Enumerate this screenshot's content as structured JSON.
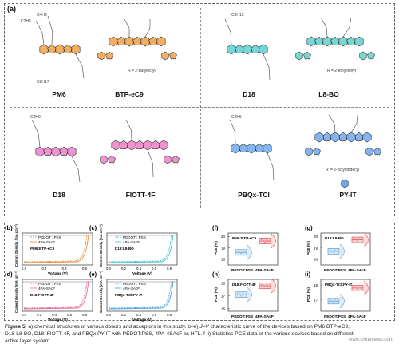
{
  "panel_a": {
    "label": "(a)",
    "molecules": [
      {
        "name": "PM6",
        "color": "#f0a048"
      },
      {
        "name": "BTP-eC9",
        "color": "#f0a048",
        "r_label": "R = 2-butyloctyl"
      },
      {
        "name": "D18",
        "color": "#5fd0d0"
      },
      {
        "name": "L8-BO",
        "color": "#5fd0d0",
        "r_label": "R = 2-ethylhexyl"
      },
      {
        "name": "D18",
        "color": "#ec7fc8"
      },
      {
        "name": "FIOTT-4F",
        "color": "#ec7fc8"
      },
      {
        "name": "PBQx-TCl",
        "color": "#6ea8ec"
      },
      {
        "name": "PY-IT",
        "color": "#6ea8ec",
        "r_label": "R' = 2-octyldodecyl"
      }
    ],
    "chain_labels": [
      "C4H9",
      "C2H5",
      "C8H17",
      "C6H13",
      "C4H9",
      "C2H5"
    ]
  },
  "jv_panels": [
    {
      "label": "(b)",
      "system": "PM6:BTP-eC9",
      "legend": [
        "PEDOT : PSS",
        "4PA-SAcF"
      ],
      "color": "#f08a3c",
      "ylabel": "Current Density (mA cm⁻²)",
      "xlabel": "Voltage (V)",
      "xticks": [
        "0.0",
        "0.2",
        "0.4",
        "0.6"
      ]
    },
    {
      "label": "(c)",
      "system": "D18:L8-BO",
      "legend": [
        "PEDOT : PSS",
        "4PA-SAcF"
      ],
      "color": "#3fc3d0",
      "ylabel": "Current Density (mA cm⁻²)",
      "xlabel": "Voltage (V)",
      "xticks": [
        "0.0",
        "0.2",
        "0.4",
        "0.6",
        "0.8"
      ]
    },
    {
      "label": "(d)",
      "system": "D18:FIOTT-4F",
      "legend": [
        "PEDOT : PSS",
        "4PA-SAcF"
      ],
      "color": "#e8649a",
      "ylabel": "Current Density (mA cm⁻²)",
      "xlabel": "Voltage (V)",
      "xticks": [
        "0.0",
        "0.2",
        "0.4",
        "0.6",
        "0.8"
      ]
    },
    {
      "label": "(e)",
      "system": "PBQx-TCl:PY-IT",
      "legend": [
        "PEDOT : PSS",
        "4PA-SAcF"
      ],
      "color": "#4aa0e0",
      "ylabel": "Current Density (mA cm⁻²)",
      "xlabel": "Voltage (V)",
      "xticks": [
        "0.0",
        "0.2",
        "0.4",
        "0.6",
        "0.8"
      ]
    }
  ],
  "chart_data": [
    {
      "type": "box",
      "label": "(f)",
      "system": "PM6:BTP-eC9",
      "ylabel": "PCE (%)",
      "categories": [
        "PEDOT:PSS",
        "4PA-SAcF"
      ],
      "yticks": [
        "18",
        "19",
        "20"
      ],
      "ylim": [
        17.5,
        20.3
      ],
      "values": [
        18.6,
        19.6
      ],
      "colors": [
        "#5aa0d8",
        "#e05050"
      ]
    },
    {
      "type": "box",
      "label": "(g)",
      "system": "D18:L8-BO",
      "ylabel": "PCE (%)",
      "categories": [
        "PEDOT:PSS",
        "4PA-SAcF"
      ],
      "yticks": [
        "18",
        "19",
        "20"
      ],
      "ylim": [
        17.5,
        20.3
      ],
      "values": [
        18.7,
        19.7
      ],
      "colors": [
        "#5aa0d8",
        "#e05050"
      ]
    },
    {
      "type": "box",
      "label": "(h)",
      "system": "D18:FIOTT-4F",
      "ylabel": "PCE (%)",
      "categories": [
        "PEDOT:PSS",
        "4PA-SAcF"
      ],
      "yticks": [
        "16",
        "17",
        "18"
      ],
      "ylim": [
        15.8,
        18.3
      ],
      "values": [
        17.1,
        17.8
      ],
      "colors": [
        "#5aa0d8",
        "#e05050"
      ]
    },
    {
      "type": "box",
      "label": "(i)",
      "system": "PBQx-TCl:PY-IT",
      "ylabel": "PCE (%)",
      "categories": [
        "PEDOT:PSS",
        "4PA-SAcF"
      ],
      "yticks": [
        "17",
        "18"
      ],
      "ylim": [
        16.2,
        18.4
      ],
      "values": [
        16.9,
        17.8
      ],
      "colors": [
        "#5aa0d8",
        "#e05050"
      ]
    }
  ],
  "caption": {
    "fig_label": "Figure 5.",
    "line1": " a) chemical structures of various donors and acceptors in this study. b–e) ",
    "jv": "J–V",
    "line1b": " characteristic curve of the devices based on PM6:BTP-eC9,",
    "line2": "D18-L8-BO, D18: FIOTT-4F, and PBQx:PY-IT with PEDOT:PSS, 4PA-4SAcF as HTL. f–i) Statistics PCE data of the various devices based on different",
    "line3": "active layer system."
  },
  "watermark": "www.chinesewp.com"
}
